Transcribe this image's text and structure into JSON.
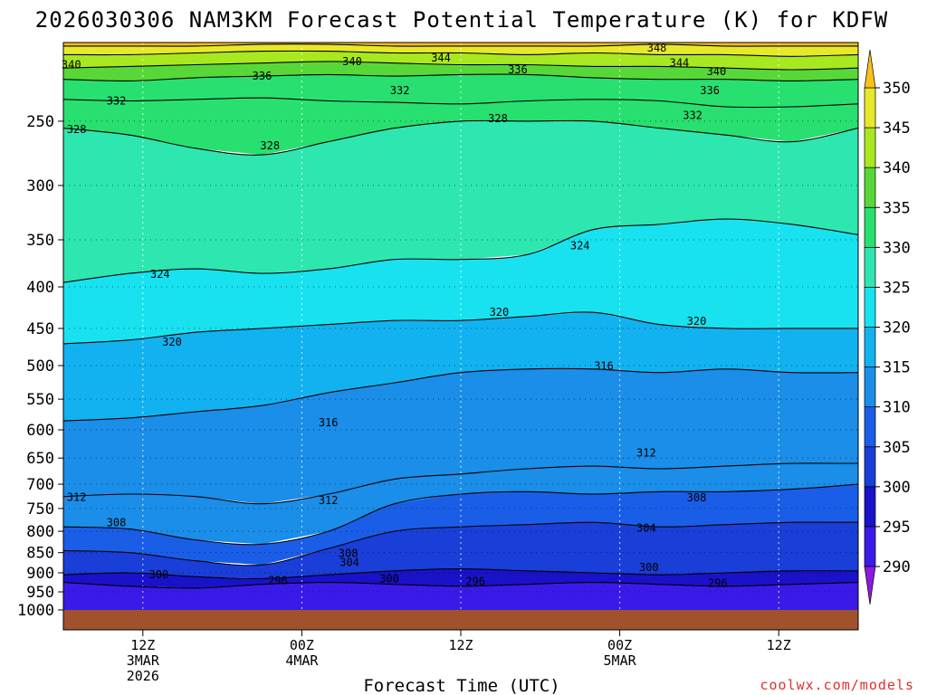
{
  "chart_data": {
    "type": "heatmap",
    "title": "2026030306 NAM3KM Forecast Potential Temperature (K) for KDFW",
    "xlabel": "Forecast Time (UTC)",
    "ylabel": "",
    "y_axis": {
      "scale": "log",
      "inverted": true,
      "unit": "hPa",
      "range": [
        200,
        1000
      ],
      "ticks": [
        250,
        300,
        350,
        400,
        450,
        500,
        550,
        600,
        650,
        700,
        750,
        800,
        850,
        900,
        950,
        1000
      ]
    },
    "x_axis": {
      "range": [
        "2026-03-03 06Z",
        "2026-03-05 18Z"
      ],
      "ticks": [
        {
          "l1": "12Z",
          "l2": "3MAR",
          "l3": "2026",
          "hours": 6
        },
        {
          "l1": "00Z",
          "l2": "4MAR",
          "l3": "",
          "hours": 18
        },
        {
          "l1": "12Z",
          "l2": "",
          "l3": "",
          "hours": 30
        },
        {
          "l1": "00Z",
          "l2": "5MAR",
          "l3": "",
          "hours": 42
        },
        {
          "l1": "12Z",
          "l2": "",
          "l3": "",
          "hours": 54
        }
      ]
    },
    "grid": true,
    "colorbar": {
      "levels": [
        290,
        295,
        300,
        305,
        310,
        315,
        320,
        325,
        330,
        335,
        340,
        345,
        350
      ],
      "colors": [
        "#8a1ae0",
        "#3a1ae8",
        "#1a12c8",
        "#1a3ed8",
        "#1a5ee8",
        "#1a8ee8",
        "#12b2f0",
        "#18e2f0",
        "#2ee6b0",
        "#28e070",
        "#58d838",
        "#a8e820",
        "#e8e82a",
        "#f8c018"
      ]
    },
    "contours": [
      {
        "theta": 296,
        "p_profile": [
          925,
          935,
          940,
          930,
          925,
          930,
          935,
          930,
          925,
          930,
          935,
          930,
          925
        ]
      },
      {
        "theta": 300,
        "p_profile": [
          905,
          900,
          910,
          915,
          905,
          895,
          890,
          895,
          900,
          905,
          900,
          895,
          895
        ]
      },
      {
        "theta": 304,
        "p_profile": [
          845,
          850,
          870,
          880,
          840,
          800,
          790,
          785,
          780,
          790,
          785,
          780,
          780
        ]
      },
      {
        "theta": 308,
        "p_profile": [
          790,
          795,
          820,
          830,
          800,
          740,
          720,
          715,
          720,
          715,
          715,
          710,
          700
        ]
      },
      {
        "theta": 312,
        "p_profile": [
          725,
          720,
          725,
          740,
          720,
          690,
          680,
          670,
          665,
          670,
          665,
          660,
          660
        ]
      },
      {
        "theta": 316,
        "p_profile": [
          585,
          580,
          570,
          560,
          540,
          525,
          510,
          505,
          505,
          510,
          505,
          510,
          510
        ]
      },
      {
        "theta": 320,
        "p_profile": [
          470,
          465,
          455,
          450,
          445,
          440,
          440,
          435,
          430,
          445,
          450,
          450,
          450
        ]
      },
      {
        "theta": 324,
        "p_profile": [
          395,
          385,
          380,
          385,
          380,
          370,
          370,
          365,
          340,
          335,
          330,
          335,
          345
        ]
      },
      {
        "theta": 328,
        "p_profile": [
          255,
          260,
          270,
          275,
          265,
          255,
          250,
          250,
          250,
          255,
          260,
          265,
          255
        ]
      },
      {
        "theta": 332,
        "p_profile": [
          235,
          236,
          235,
          234,
          236,
          237,
          238,
          236,
          235,
          236,
          240,
          240,
          238
        ]
      },
      {
        "theta": 336,
        "p_profile": [
          222,
          223,
          221,
          220,
          219,
          220,
          219,
          219,
          221,
          222,
          222,
          223,
          222
        ]
      },
      {
        "theta": 340,
        "p_profile": [
          215,
          214,
          213,
          212,
          211,
          212,
          213,
          213,
          214,
          214,
          215,
          216,
          215
        ]
      },
      {
        "theta": 344,
        "p_profile": [
          207,
          207,
          206,
          205,
          205,
          206,
          206,
          207,
          206,
          207,
          207,
          208,
          207
        ]
      },
      {
        "theta": 348,
        "p_profile": [
          202,
          202,
          202,
          201,
          201,
          202,
          202,
          202,
          202,
          201,
          202,
          202,
          202
        ]
      }
    ],
    "contour_labels": [
      {
        "text": "340",
        "hours": 0.6,
        "p": 213
      },
      {
        "text": "336",
        "hours": 15,
        "p": 220
      },
      {
        "text": "340",
        "hours": 21.8,
        "p": 211
      },
      {
        "text": "344",
        "hours": 28.5,
        "p": 209
      },
      {
        "text": "336",
        "hours": 34.3,
        "p": 216
      },
      {
        "text": "348",
        "hours": 44.8,
        "p": 203
      },
      {
        "text": "344",
        "hours": 46.5,
        "p": 212
      },
      {
        "text": "340",
        "hours": 49.3,
        "p": 217
      },
      {
        "text": "336",
        "hours": 48.8,
        "p": 229
      },
      {
        "text": "332",
        "hours": 4.0,
        "p": 236
      },
      {
        "text": "332",
        "hours": 25.4,
        "p": 229
      },
      {
        "text": "332",
        "hours": 47.5,
        "p": 246
      },
      {
        "text": "328",
        "hours": 1.0,
        "p": 256
      },
      {
        "text": "328",
        "hours": 15.6,
        "p": 268
      },
      {
        "text": "328",
        "hours": 32.8,
        "p": 248
      },
      {
        "text": "324",
        "hours": 7.3,
        "p": 386
      },
      {
        "text": "324",
        "hours": 39.0,
        "p": 356
      },
      {
        "text": "320",
        "hours": 8.2,
        "p": 468
      },
      {
        "text": "320",
        "hours": 32.9,
        "p": 430
      },
      {
        "text": "320",
        "hours": 47.8,
        "p": 441
      },
      {
        "text": "316",
        "hours": 20.0,
        "p": 588
      },
      {
        "text": "316",
        "hours": 40.8,
        "p": 501
      },
      {
        "text": "312",
        "hours": 1.0,
        "p": 726
      },
      {
        "text": "312",
        "hours": 20.0,
        "p": 733
      },
      {
        "text": "312",
        "hours": 44.0,
        "p": 641
      },
      {
        "text": "308",
        "hours": 4.0,
        "p": 781
      },
      {
        "text": "308",
        "hours": 21.5,
        "p": 852
      },
      {
        "text": "308",
        "hours": 47.8,
        "p": 727
      },
      {
        "text": "304",
        "hours": 21.6,
        "p": 874
      },
      {
        "text": "304",
        "hours": 44.0,
        "p": 793
      },
      {
        "text": "300",
        "hours": 7.2,
        "p": 905
      },
      {
        "text": "300",
        "hours": 24.6,
        "p": 915
      },
      {
        "text": "300",
        "hours": 44.2,
        "p": 886
      },
      {
        "text": "296",
        "hours": 16.2,
        "p": 920
      },
      {
        "text": "296",
        "hours": 31.1,
        "p": 922
      },
      {
        "text": "296",
        "hours": 49.4,
        "p": 927
      }
    ],
    "ground_color": "#a0522d"
  },
  "credit": "coolwx.com/models"
}
